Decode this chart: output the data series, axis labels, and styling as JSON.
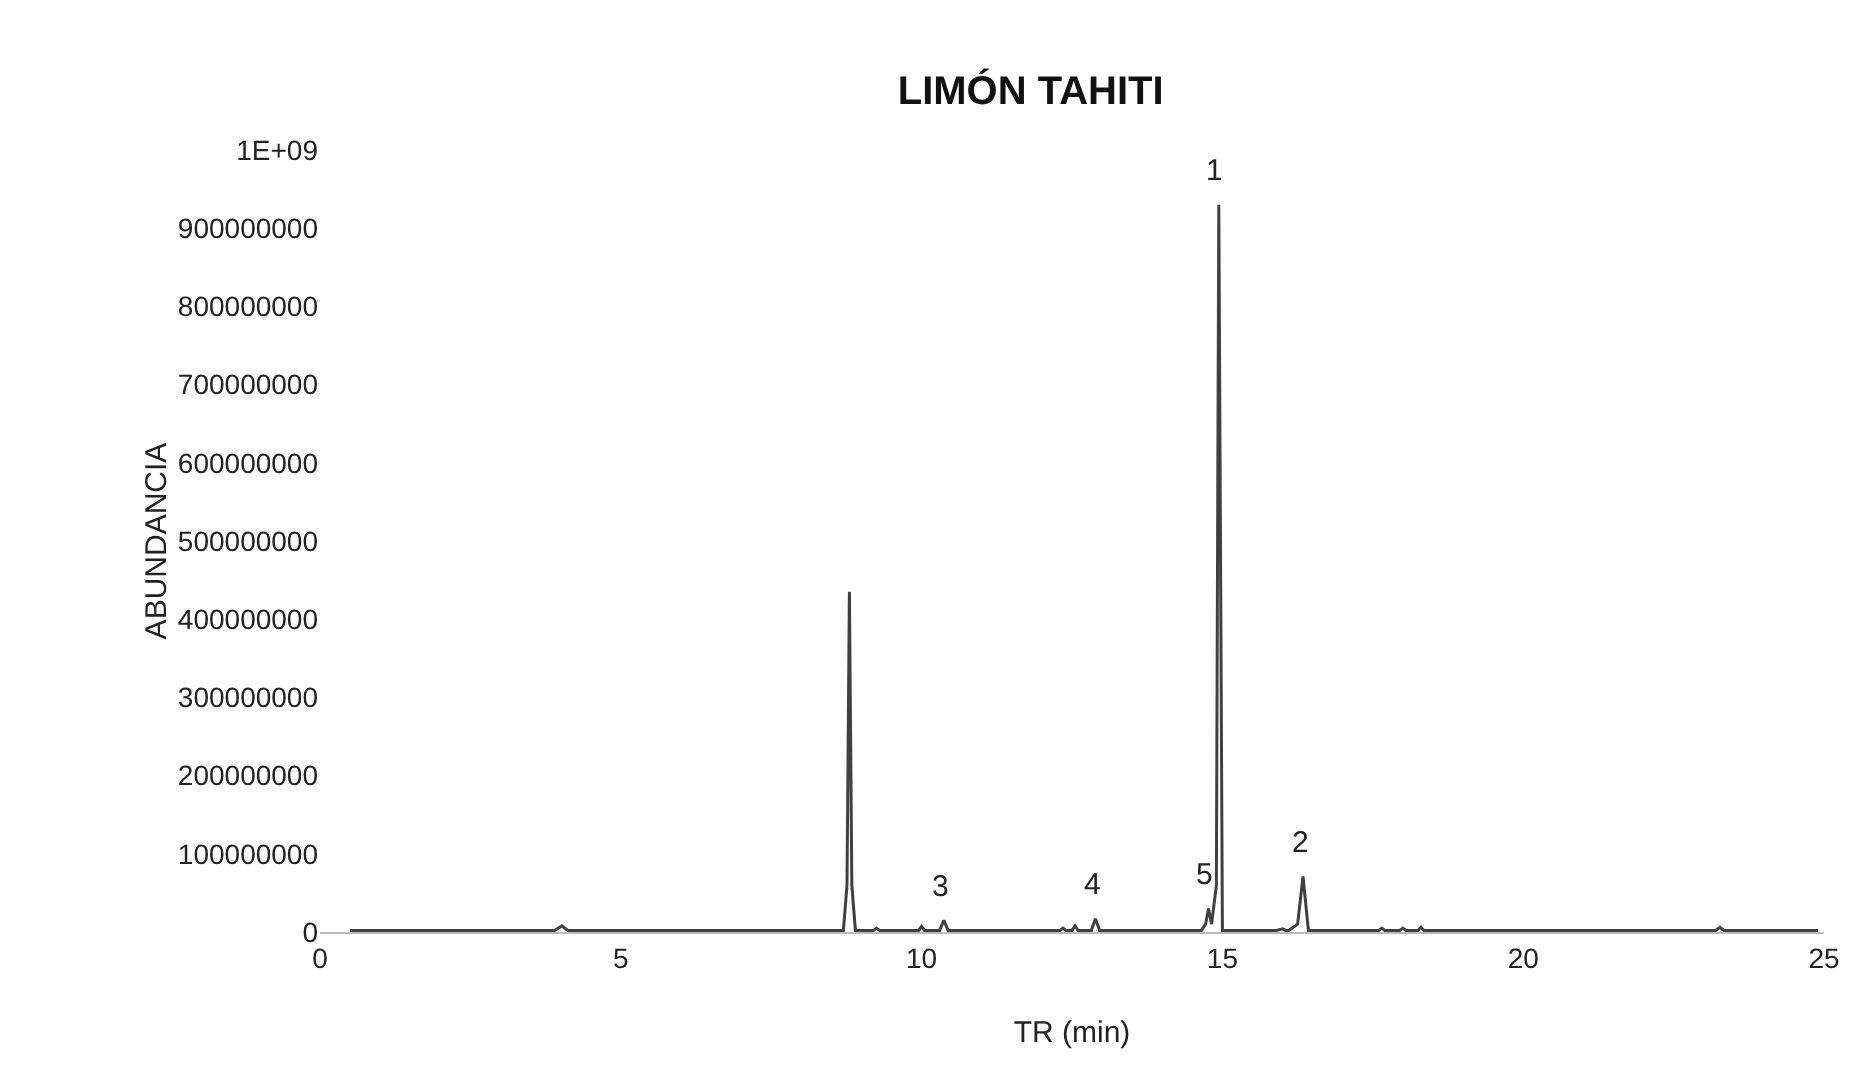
{
  "chart_data": {
    "type": "line",
    "title": "LIMÓN TAHITI",
    "xlabel": "TR (min)",
    "ylabel": "ABUNDANCIA",
    "x": [
      0.5,
      3.9,
      4.02,
      4.12,
      8.7,
      8.76,
      8.8,
      8.84,
      8.9,
      9.2,
      9.25,
      9.3,
      9.95,
      10.0,
      10.05,
      10.3,
      10.37,
      10.44,
      12.3,
      12.35,
      12.4,
      12.5,
      12.55,
      12.6,
      12.82,
      12.89,
      12.96,
      14.65,
      14.72,
      14.77,
      14.82,
      14.9,
      14.94,
      15.0,
      15.1,
      15.9,
      16.0,
      16.05,
      16.1,
      16.25,
      16.34,
      16.43,
      17.6,
      17.65,
      17.7,
      17.95,
      18.0,
      18.05,
      18.25,
      18.3,
      18.35,
      23.2,
      23.27,
      23.34,
      24.9
    ],
    "series": [
      {
        "color": "#404040",
        "values": [
          2000000,
          2000000,
          8000000,
          2000000,
          2000000,
          60000000,
          435000000,
          60000000,
          2000000,
          2000000,
          5000000,
          2000000,
          2000000,
          7000000,
          2000000,
          2000000,
          15000000,
          2000000,
          2000000,
          5000000,
          2000000,
          2000000,
          8000000,
          2000000,
          2000000,
          17000000,
          2000000,
          2000000,
          10000000,
          30000000,
          10000000,
          60000000,
          930000000,
          2000000,
          2000000,
          2000000,
          4000000,
          2000000,
          2000000,
          10000000,
          71000000,
          2000000,
          2000000,
          5000000,
          2000000,
          2000000,
          5000000,
          2000000,
          2000000,
          6000000,
          2000000,
          2000000,
          6000000,
          2000000,
          2000000
        ]
      }
    ],
    "xlim": [
      0,
      25
    ],
    "xticks": [
      0,
      5,
      10,
      15,
      20,
      25
    ],
    "ylim": [
      0,
      1000000000
    ],
    "yticks": [
      0,
      100000000,
      200000000,
      300000000,
      400000000,
      500000000,
      600000000,
      700000000,
      800000000,
      900000000,
      {
        "value": 1000000000,
        "label": "1E+09"
      }
    ],
    "marker": "none",
    "line_style": "solid",
    "annotations": [
      {
        "text": "1",
        "x": 14.94,
        "y": 930000000
      },
      {
        "text": "2",
        "x": 16.34,
        "y": 71000000
      },
      {
        "text": "3",
        "x": 10.37,
        "y": 15000000
      },
      {
        "text": "4",
        "x": 12.89,
        "y": 17000000
      },
      {
        "text": "5",
        "x": 14.77,
        "y": 30000000
      }
    ]
  }
}
